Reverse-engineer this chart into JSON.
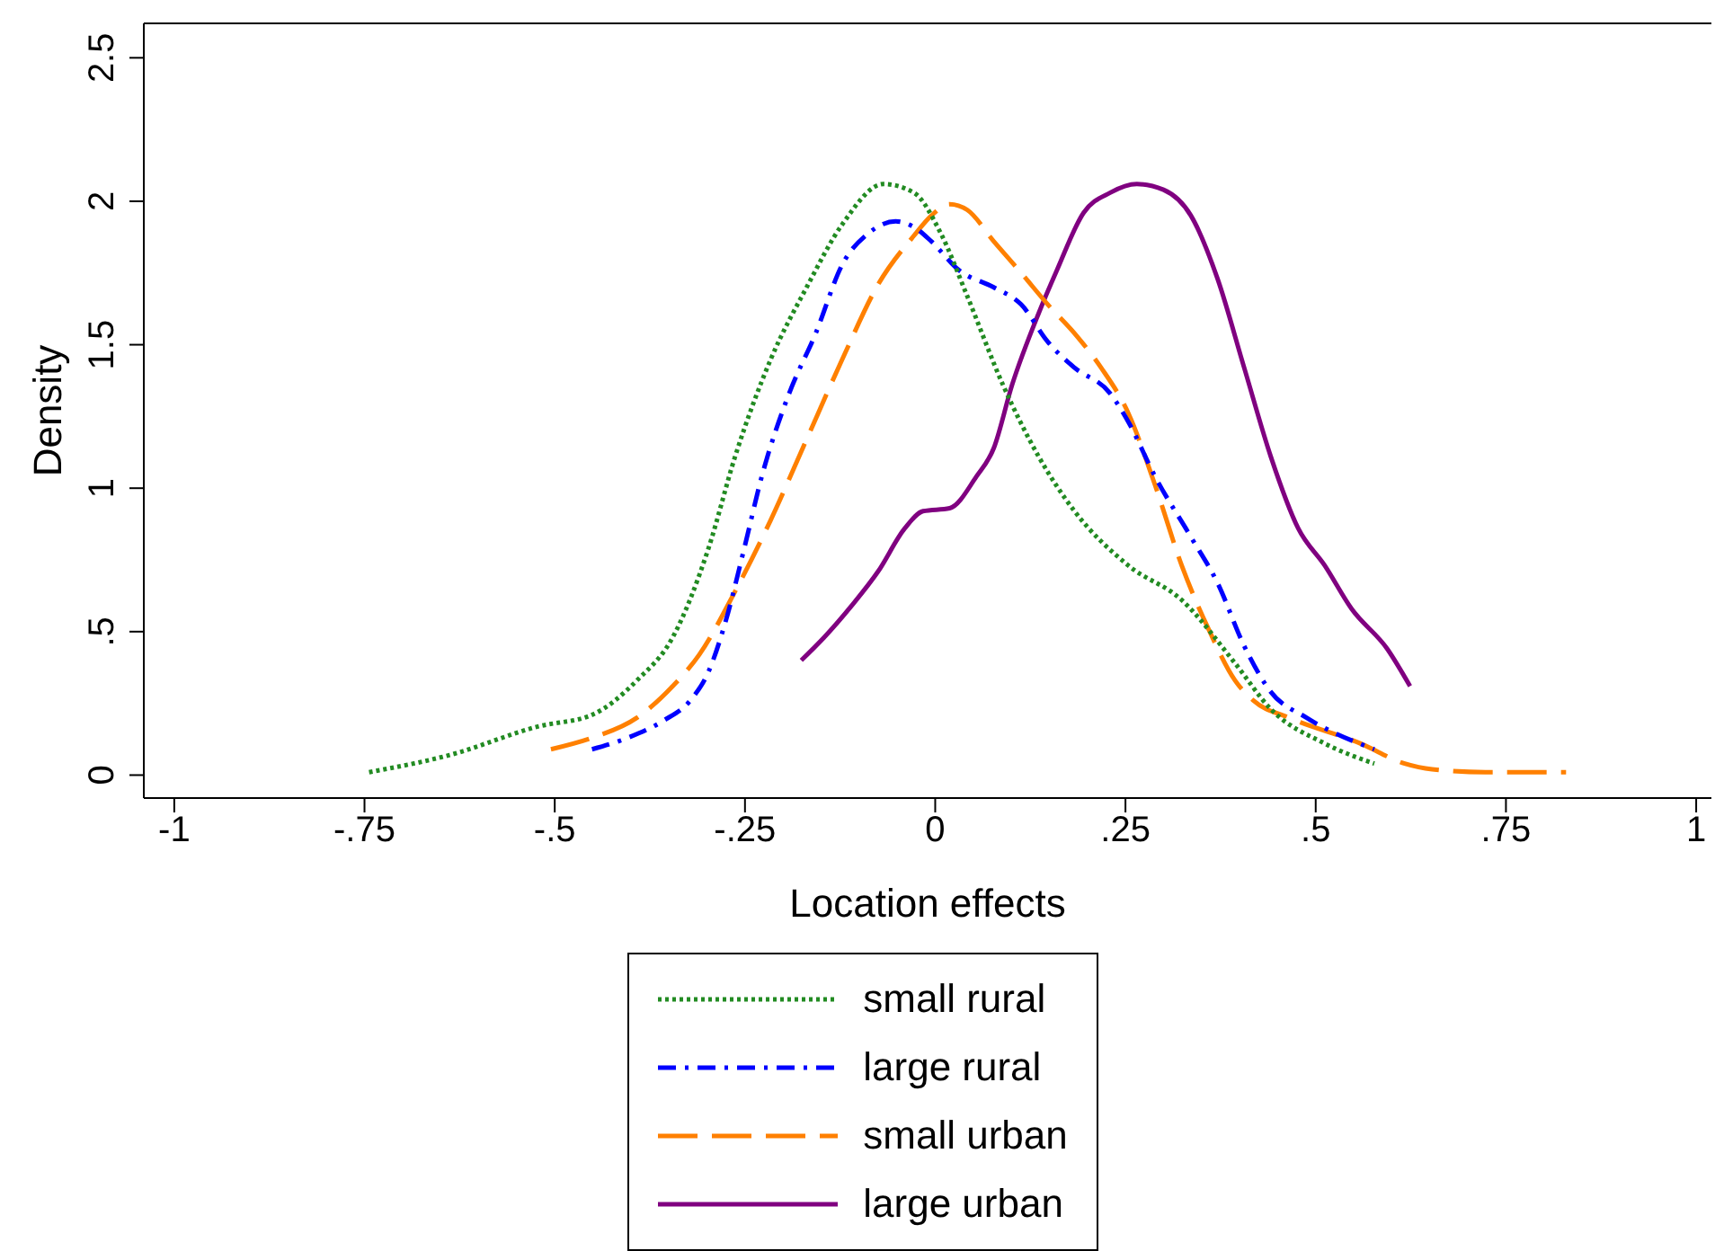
{
  "chart_data": {
    "type": "line",
    "xlabel": "Location effects",
    "ylabel": "Density",
    "xlim": [
      -1.04,
      1.02
    ],
    "ylim": [
      -0.08,
      2.62
    ],
    "xticks": [
      -1,
      {
        "value": -0.75,
        "label": "-.75"
      },
      {
        "value": -0.5,
        "label": "-.5"
      },
      {
        "value": -0.25,
        "label": "-.25"
      },
      0,
      {
        "value": 0.25,
        "label": ".25"
      },
      {
        "value": 0.5,
        "label": ".5"
      },
      {
        "value": 0.75,
        "label": ".75"
      },
      1
    ],
    "yticks": [
      0,
      {
        "value": 0.5,
        "label": ".5"
      },
      1,
      1.5,
      2,
      2.5
    ],
    "grid": false,
    "legend": "bottom",
    "marker": "none",
    "series": [
      {
        "name": "small rural",
        "color": "#228b22",
        "line_style": "dotted",
        "x": [
          -0.744,
          -0.638,
          -0.521,
          -0.451,
          -0.392,
          -0.345,
          -0.298,
          -0.263,
          -0.216,
          -0.169,
          -0.122,
          -0.068,
          -0.028,
          0.007,
          0.042,
          0.089,
          0.136,
          0.183,
          0.254,
          0.324,
          0.394,
          0.441,
          0.512,
          0.577
        ],
        "values": [
          0.01,
          0.07,
          0.17,
          0.21,
          0.33,
          0.48,
          0.79,
          1.11,
          1.45,
          1.7,
          1.92,
          2.06,
          2.03,
          1.89,
          1.67,
          1.36,
          1.11,
          0.92,
          0.73,
          0.61,
          0.39,
          0.23,
          0.11,
          0.04
        ]
      },
      {
        "name": "large rural",
        "color": "#0000ff",
        "line_style": "dashdot",
        "x": [
          -0.451,
          -0.404,
          -0.357,
          -0.322,
          -0.298,
          -0.275,
          -0.251,
          -0.228,
          -0.192,
          -0.157,
          -0.122,
          -0.087,
          -0.052,
          -0.028,
          -0.005,
          0.031,
          0.077,
          0.113,
          0.148,
          0.183,
          0.23,
          0.254,
          0.289,
          0.336,
          0.371,
          0.406,
          0.441,
          0.488,
          0.577
        ],
        "values": [
          0.09,
          0.13,
          0.19,
          0.26,
          0.36,
          0.54,
          0.79,
          1.04,
          1.33,
          1.54,
          1.78,
          1.89,
          1.93,
          1.91,
          1.86,
          1.76,
          1.7,
          1.64,
          1.51,
          1.42,
          1.33,
          1.23,
          1.04,
          0.83,
          0.67,
          0.45,
          0.29,
          0.2,
          0.09
        ]
      },
      {
        "name": "small urban",
        "color": "#ff8000",
        "line_style": "dashed",
        "x": [
          -0.505,
          -0.451,
          -0.392,
          -0.345,
          -0.31,
          -0.263,
          -0.216,
          -0.169,
          -0.122,
          -0.075,
          -0.028,
          -0.005,
          0.019,
          0.042,
          0.077,
          0.113,
          0.148,
          0.183,
          0.218,
          0.254,
          0.289,
          0.324,
          0.359,
          0.394,
          0.418,
          0.465,
          0.559,
          0.617,
          0.653,
          0.723,
          0.829
        ],
        "values": [
          0.09,
          0.13,
          0.2,
          0.31,
          0.42,
          0.64,
          0.89,
          1.17,
          1.45,
          1.71,
          1.88,
          1.95,
          1.99,
          1.97,
          1.86,
          1.75,
          1.64,
          1.54,
          1.42,
          1.26,
          1.01,
          0.73,
          0.51,
          0.33,
          0.26,
          0.2,
          0.11,
          0.04,
          0.02,
          0.01,
          0.01
        ]
      },
      {
        "name": "large urban",
        "color": "#800080",
        "line_style": "solid",
        "x": [
          -0.176,
          -0.146,
          -0.11,
          -0.075,
          -0.04,
          -0.016,
          0.019,
          0.054,
          0.077,
          0.101,
          0.136,
          0.16,
          0.195,
          0.23,
          0.265,
          0.3,
          0.336,
          0.371,
          0.406,
          0.441,
          0.477,
          0.512,
          0.547,
          0.594,
          0.624
        ],
        "values": [
          0.4,
          0.48,
          0.59,
          0.71,
          0.86,
          0.92,
          0.93,
          1.04,
          1.14,
          1.36,
          1.61,
          1.76,
          1.96,
          2.03,
          2.06,
          2.04,
          1.95,
          1.73,
          1.42,
          1.11,
          0.86,
          0.73,
          0.58,
          0.44,
          0.31
        ]
      }
    ]
  }
}
